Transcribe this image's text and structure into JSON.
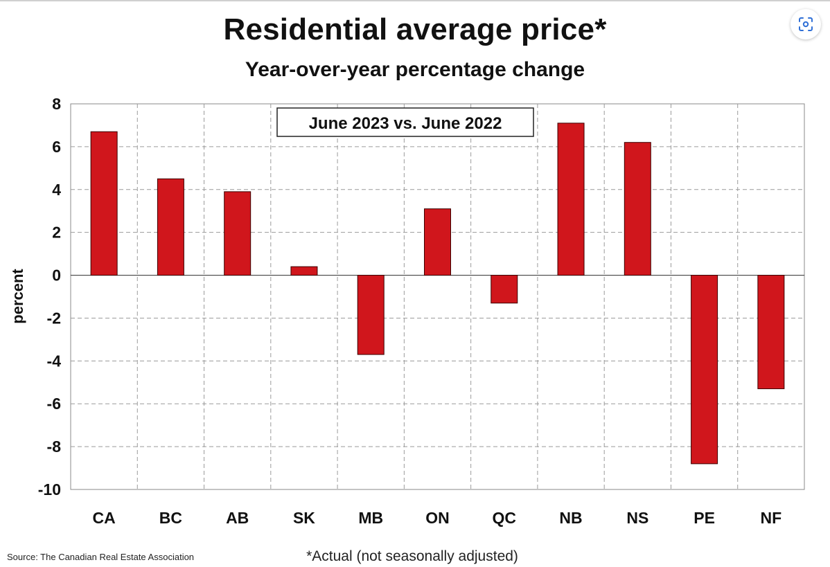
{
  "title": "Residential average price*",
  "subtitle": "Year-over-year percentage change",
  "source": "Source: The Canadian Real Estate Association",
  "footnote": "*Actual (not seasonally adjusted)",
  "toolbar": {
    "lens_icon": "lens-scan-icon"
  },
  "colors": {
    "bar": "#d0161c",
    "bar_outline": "#3a0000",
    "grid": "#9a9a9a",
    "axis": "#444444"
  },
  "chart_data": {
    "type": "bar",
    "title": "Residential average price*",
    "subtitle": "Year-over-year percentage change",
    "annotation": "June 2023 vs. June 2022",
    "xlabel": "",
    "ylabel": "percent",
    "categories": [
      "CA",
      "BC",
      "AB",
      "SK",
      "MB",
      "ON",
      "QC",
      "NB",
      "NS",
      "PE",
      "NF"
    ],
    "values": [
      6.7,
      4.5,
      3.9,
      0.4,
      -3.7,
      3.1,
      -1.3,
      7.1,
      6.2,
      -8.8,
      -5.3
    ],
    "ylim": [
      -10,
      8
    ],
    "yticks": [
      8,
      6,
      4,
      2,
      0,
      -2,
      -4,
      -6,
      -8,
      -10
    ],
    "grid": true,
    "legend": "none"
  }
}
